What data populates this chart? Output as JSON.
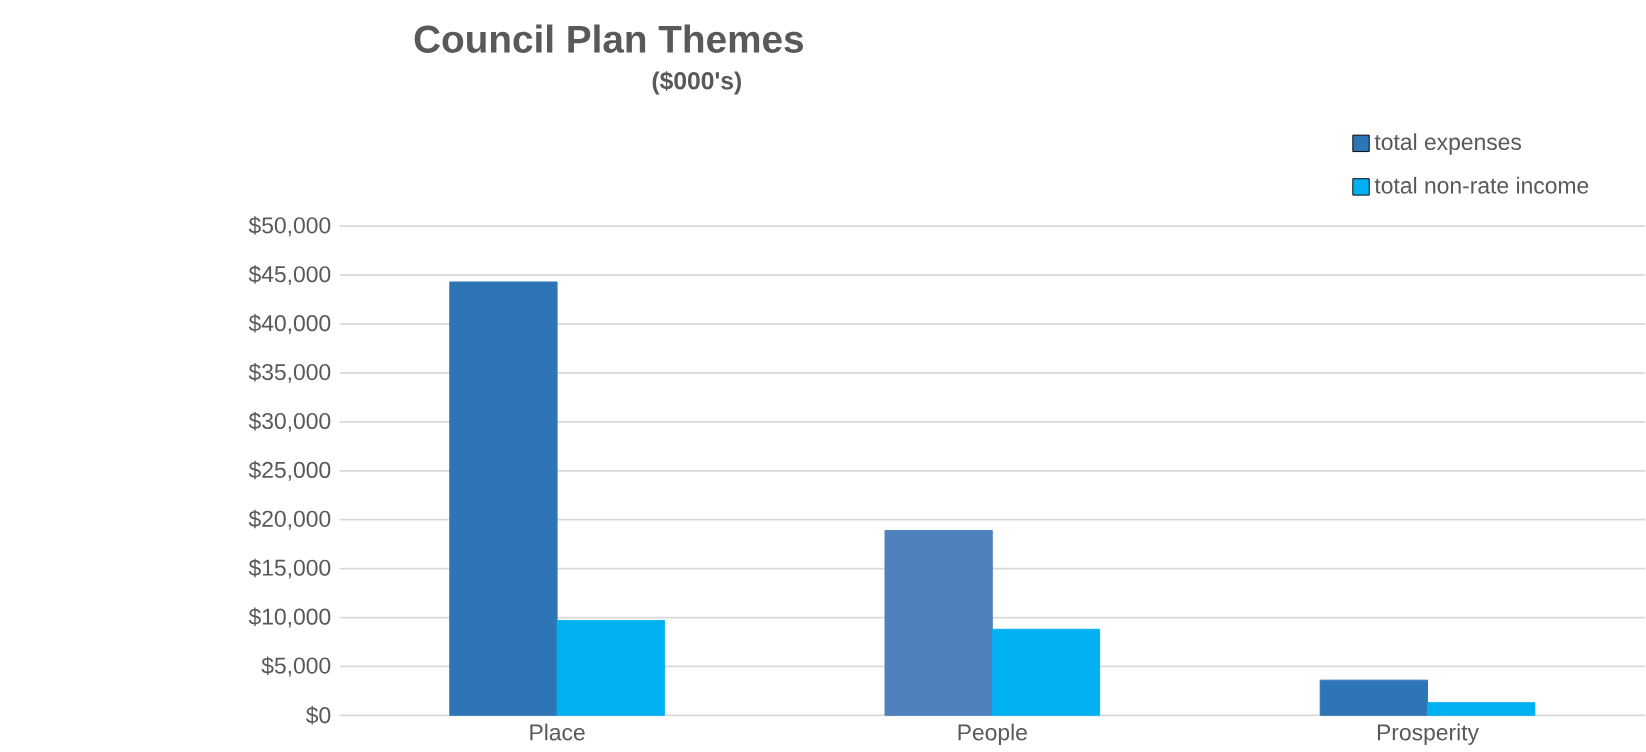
{
  "chart_data": {
    "type": "bar",
    "title": "Council Plan Themes",
    "subtitle": "($000's)",
    "categories": [
      "Place",
      "People",
      "Prosperity"
    ],
    "series": [
      {
        "name": "total expenses",
        "color": "#2e75b6",
        "colors": [
          "#2e75b6",
          "#4f81bd",
          "#2e75b6"
        ],
        "values": [
          44300,
          18900,
          3600
        ]
      },
      {
        "name": "total non-rate income",
        "color": "#00b0f0",
        "values": [
          9700,
          8800,
          1300
        ]
      }
    ],
    "ylim": [
      0,
      50000
    ],
    "yticks": [
      {
        "value": 0,
        "label": "$0"
      },
      {
        "value": 5000,
        "label": "$5,000"
      },
      {
        "value": 10000,
        "label": "$10,000"
      },
      {
        "value": 15000,
        "label": "$15,000"
      },
      {
        "value": 20000,
        "label": "$20,000"
      },
      {
        "value": 25000,
        "label": "$25,000"
      },
      {
        "value": 30000,
        "label": "$30,000"
      },
      {
        "value": 35000,
        "label": "$35,000"
      },
      {
        "value": 40000,
        "label": "$40,000"
      },
      {
        "value": 45000,
        "label": "$45,000"
      },
      {
        "value": 50000,
        "label": "$50,000"
      }
    ],
    "grid": "y",
    "legend": "top right"
  }
}
